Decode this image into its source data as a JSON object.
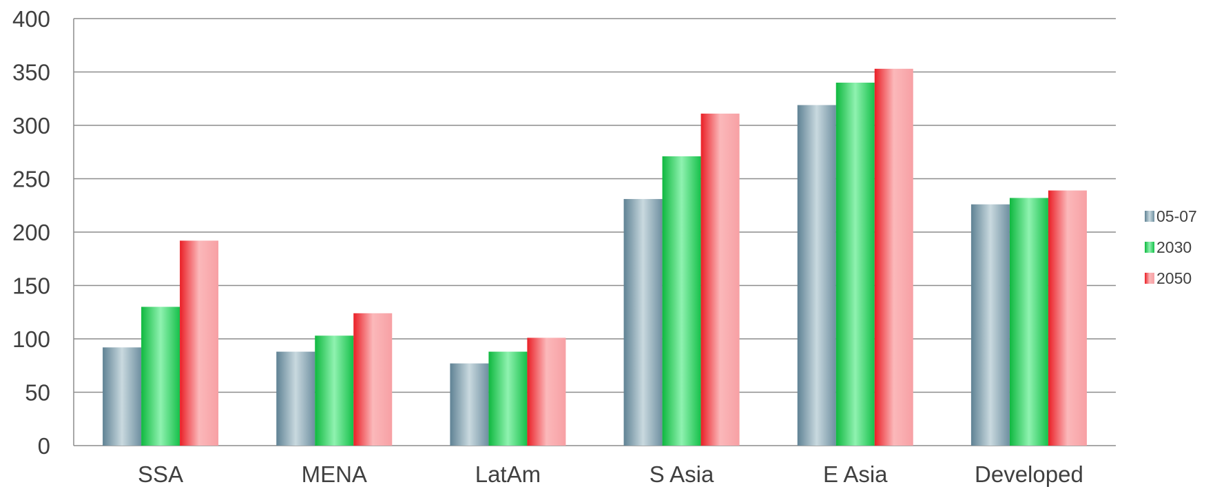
{
  "chart_data": {
    "type": "bar",
    "title": "",
    "xlabel": "",
    "ylabel": "",
    "categories": [
      "SSA",
      "MENA",
      "LatAm",
      "S Asia",
      "E Asia",
      "Developed"
    ],
    "series": [
      {
        "name": "05-07",
        "values": [
          92,
          88,
          77,
          231,
          319,
          226
        ],
        "color": "#6e8fa0"
      },
      {
        "name": "2030",
        "values": [
          130,
          103,
          88,
          271,
          340,
          232
        ],
        "color": "#1ec34e"
      },
      {
        "name": "2050",
        "values": [
          192,
          124,
          101,
          311,
          353,
          239
        ],
        "color": "#ee2f2f"
      }
    ],
    "ylim": [
      0,
      400
    ],
    "yticks": [
      0,
      50,
      100,
      150,
      200,
      250,
      300,
      350,
      400
    ],
    "grid": true,
    "legend": "right"
  }
}
